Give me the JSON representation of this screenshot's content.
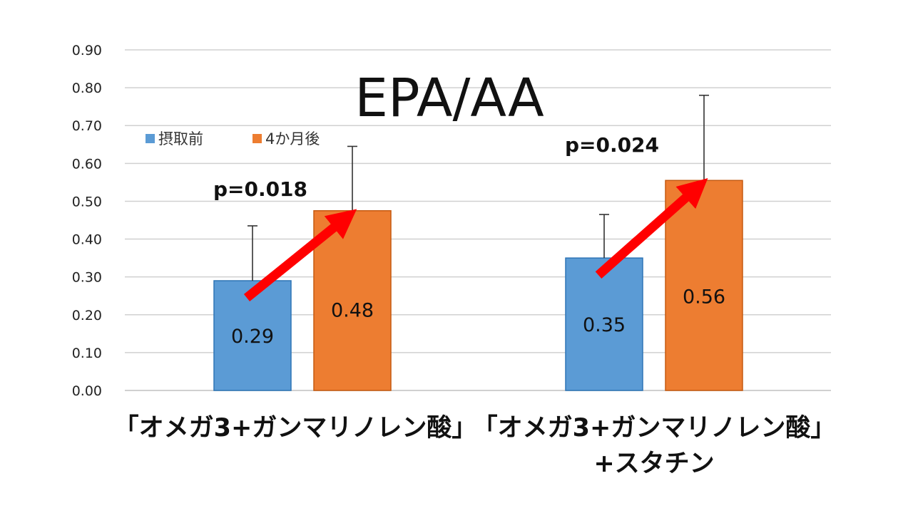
{
  "chart_data": {
    "type": "bar",
    "title": "EPA/AA",
    "categories": [
      [
        "「オメガ3+ガンマリノレン酸」"
      ],
      [
        "「オメガ3+ガンマリノレン酸」",
        "+スタチン"
      ]
    ],
    "series": [
      {
        "name": "摂取前",
        "color": "#5b9bd5",
        "values": [
          0.29,
          0.35
        ],
        "error_upper": [
          0.435,
          0.465
        ],
        "labels": [
          "0.29",
          "0.35"
        ]
      },
      {
        "name": "4か月後",
        "color": "#ed7d31",
        "values": [
          0.475,
          0.555
        ],
        "error_upper": [
          0.645,
          0.78
        ],
        "labels": [
          "0.48",
          "0.56"
        ]
      }
    ],
    "annotations": [
      {
        "text": "p=0.018",
        "category_index": 0
      },
      {
        "text": "p=0.024",
        "category_index": 1
      }
    ],
    "ylim": [
      0,
      0.9
    ],
    "yticks": [
      "0.00",
      "0.10",
      "0.20",
      "0.30",
      "0.40",
      "0.50",
      "0.60",
      "0.70",
      "0.80",
      "0.90"
    ],
    "grid": true,
    "legend_position": "top-left",
    "arrow_color": "#ff0000"
  }
}
